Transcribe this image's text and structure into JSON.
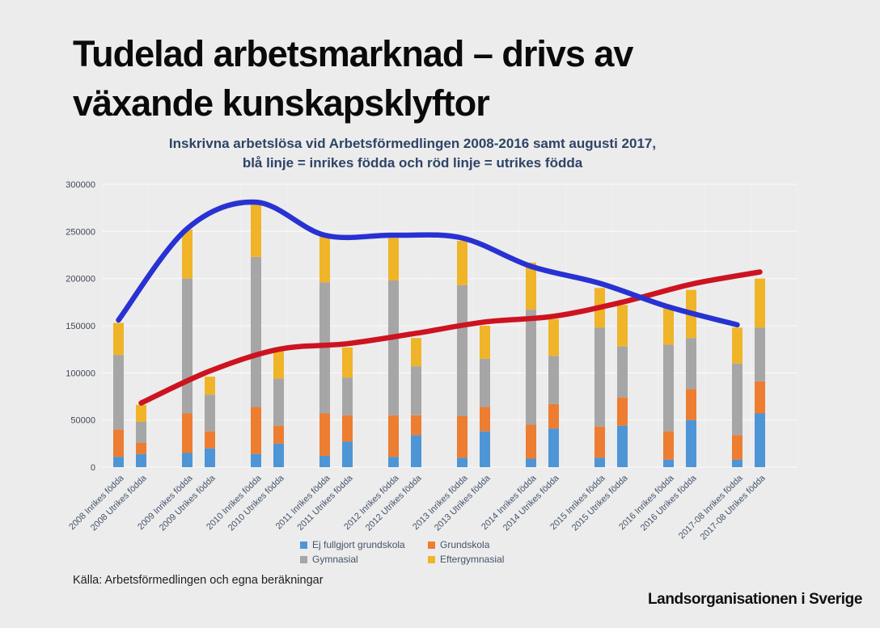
{
  "slide": {
    "title": "Tudelad arbetsmarknad – drivs av växande kunskapsklyftor",
    "source_note": "Källa: Arbetsförmedlingen och egna beräkningar",
    "brand": "Landsorganisationen i Sverige"
  },
  "chart_data": {
    "type": "bar",
    "subtype": "stacked-bars-with-smoothed-lines",
    "title": "Inskrivna arbetslösa vid Arbetsförmedlingen 2008-2016 samt augusti 2017,",
    "title_line2": "blå linje = inrikes födda och röd linje = utrikes födda",
    "categories": [
      "2008 Inrikes födda",
      "2008 Utrikes födda",
      "2009 Inrikes födda",
      "2009 Utrikes födda",
      "2010 Inrikes födda",
      "2010 Utrikes födda",
      "2011 Inrikes födda",
      "2011 Utrikes födda",
      "2012 Inrikes födda",
      "2012 Utrikes födda",
      "2013 Inrikes födda",
      "2013 Utrikes födda",
      "2014 Inrikes födda",
      "2014 Utrikes födda",
      "2015 Inrikes födda",
      "2015 Utrikes födda",
      "2016 Inrikes födda",
      "2016 Utrikes födda",
      "2017-08 Inrikes födda",
      "2017-08 Utrikes födda"
    ],
    "stack_series": [
      {
        "name": "Ej fullgjort grundskola",
        "color": "#4E95D6",
        "values": [
          11000,
          14000,
          15000,
          20000,
          14000,
          25000,
          12000,
          27000,
          11000,
          34000,
          10000,
          38000,
          9000,
          41000,
          10000,
          44000,
          8000,
          50000,
          8000,
          57000
        ]
      },
      {
        "name": "Grundskola",
        "color": "#ED7D31",
        "values": [
          29000,
          12000,
          42000,
          18000,
          50000,
          19000,
          45000,
          28000,
          44000,
          21000,
          44000,
          26000,
          36000,
          26000,
          33000,
          30000,
          30000,
          33000,
          26000,
          34000
        ]
      },
      {
        "name": "Gymnasial",
        "color": "#A6A6A6",
        "values": [
          79000,
          22000,
          143000,
          39000,
          159000,
          50000,
          139000,
          40000,
          143000,
          52000,
          139000,
          51000,
          122000,
          51000,
          105000,
          54000,
          92000,
          54000,
          76000,
          57000
        ]
      },
      {
        "name": "Eftergymnasial",
        "color": "#F0B428",
        "values": [
          34000,
          18000,
          52000,
          19000,
          57000,
          33000,
          49000,
          32000,
          45000,
          30000,
          47000,
          35000,
          50000,
          39000,
          42000,
          44000,
          40000,
          51000,
          38000,
          52000
        ]
      }
    ],
    "bar_totals": [
      153000,
      66000,
      252000,
      96000,
      280000,
      127000,
      245000,
      127000,
      243000,
      137000,
      240000,
      150000,
      217000,
      157000,
      190000,
      172000,
      170000,
      188000,
      148000,
      200000
    ],
    "line_series": [
      {
        "name": "utrikes födda",
        "color": "#CD1320",
        "category_indices": [
          1,
          3,
          5,
          7,
          9,
          11,
          13,
          15,
          17,
          19
        ],
        "values": [
          68000,
          102000,
          125000,
          131000,
          142000,
          154000,
          160000,
          175000,
          194000,
          207000
        ]
      },
      {
        "name": "inrikes födda",
        "color": "#2832D2",
        "category_indices": [
          0,
          2,
          4,
          6,
          8,
          10,
          12,
          14,
          16,
          18
        ],
        "values": [
          156000,
          253000,
          281000,
          246000,
          246000,
          243000,
          213000,
          195000,
          170000,
          151000
        ]
      }
    ],
    "ylim": [
      0,
      300000
    ],
    "ytick_step": 50000,
    "ytick_labels": [
      "0",
      "50000",
      "100000",
      "150000",
      "200000",
      "250000",
      "300000"
    ],
    "grid": true,
    "legend_position": "bottom-center",
    "legend_items": [
      "Ej fullgjort grundskola",
      "Grundskola",
      "Gymnasial",
      "Eftergymnasial"
    ]
  }
}
